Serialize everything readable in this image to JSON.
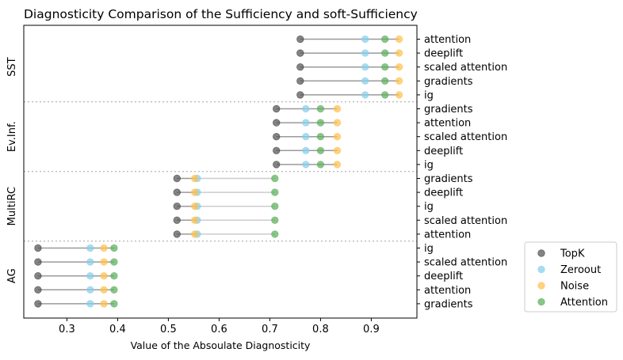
{
  "chart_data": {
    "type": "dumbbell",
    "title": "Diagnosticity Comparison of the Sufficiency and soft-Sufficiency",
    "xlabel": "Value of the Absoulate Diagnosticity",
    "xlim": [
      0.215,
      0.99
    ],
    "xticks": [
      0.3,
      0.4,
      0.5,
      0.6,
      0.7,
      0.8,
      0.9
    ],
    "xtick_labels": [
      "0.3",
      "0.4",
      "0.5",
      "0.6",
      "0.7",
      "0.8",
      "0.9"
    ],
    "legend_position": "outside-bottom-right",
    "series": [
      {
        "name": "TopK",
        "color": "#555555"
      },
      {
        "name": "Zeroout",
        "color": "#87CEEB"
      },
      {
        "name": "Noise",
        "color": "#FFC04D"
      },
      {
        "name": "Attention",
        "color": "#5CAF5C"
      }
    ],
    "groups": [
      {
        "name": "SST",
        "rows": [
          {
            "label": "attention",
            "TopK": 0.76,
            "Zeroout": 0.888,
            "Noise": 0.955,
            "Attention": 0.927
          },
          {
            "label": "deeplift",
            "TopK": 0.76,
            "Zeroout": 0.888,
            "Noise": 0.955,
            "Attention": 0.927
          },
          {
            "label": "scaled attention",
            "TopK": 0.76,
            "Zeroout": 0.888,
            "Noise": 0.955,
            "Attention": 0.927
          },
          {
            "label": "gradients",
            "TopK": 0.76,
            "Zeroout": 0.888,
            "Noise": 0.955,
            "Attention": 0.927
          },
          {
            "label": "ig",
            "TopK": 0.76,
            "Zeroout": 0.888,
            "Noise": 0.955,
            "Attention": 0.927
          }
        ]
      },
      {
        "name": "Ev.Inf.",
        "rows": [
          {
            "label": "gradients",
            "TopK": 0.713,
            "Zeroout": 0.771,
            "Noise": 0.833,
            "Attention": 0.8
          },
          {
            "label": "attention",
            "TopK": 0.713,
            "Zeroout": 0.771,
            "Noise": 0.833,
            "Attention": 0.8
          },
          {
            "label": "scaled attention",
            "TopK": 0.713,
            "Zeroout": 0.771,
            "Noise": 0.833,
            "Attention": 0.8
          },
          {
            "label": "deeplift",
            "TopK": 0.713,
            "Zeroout": 0.771,
            "Noise": 0.833,
            "Attention": 0.8
          },
          {
            "label": "ig",
            "TopK": 0.713,
            "Zeroout": 0.771,
            "Noise": 0.833,
            "Attention": 0.8
          }
        ]
      },
      {
        "name": "MultiRC",
        "rows": [
          {
            "label": "gradients",
            "TopK": 0.517,
            "Zeroout": 0.557,
            "Noise": 0.552,
            "Attention": 0.71
          },
          {
            "label": "deeplift",
            "TopK": 0.517,
            "Zeroout": 0.557,
            "Noise": 0.552,
            "Attention": 0.71
          },
          {
            "label": "ig",
            "TopK": 0.517,
            "Zeroout": 0.557,
            "Noise": 0.552,
            "Attention": 0.71
          },
          {
            "label": "scaled attention",
            "TopK": 0.517,
            "Zeroout": 0.557,
            "Noise": 0.552,
            "Attention": 0.71
          },
          {
            "label": "attention",
            "TopK": 0.517,
            "Zeroout": 0.557,
            "Noise": 0.552,
            "Attention": 0.71
          }
        ]
      },
      {
        "name": "AG",
        "rows": [
          {
            "label": "ig",
            "TopK": 0.243,
            "Zeroout": 0.346,
            "Noise": 0.373,
            "Attention": 0.393
          },
          {
            "label": "scaled attention",
            "TopK": 0.243,
            "Zeroout": 0.346,
            "Noise": 0.373,
            "Attention": 0.393
          },
          {
            "label": "deeplift",
            "TopK": 0.243,
            "Zeroout": 0.346,
            "Noise": 0.373,
            "Attention": 0.393
          },
          {
            "label": "attention",
            "TopK": 0.243,
            "Zeroout": 0.346,
            "Noise": 0.373,
            "Attention": 0.393
          },
          {
            "label": "gradients",
            "TopK": 0.243,
            "Zeroout": 0.346,
            "Noise": 0.373,
            "Attention": 0.393
          }
        ]
      }
    ]
  }
}
